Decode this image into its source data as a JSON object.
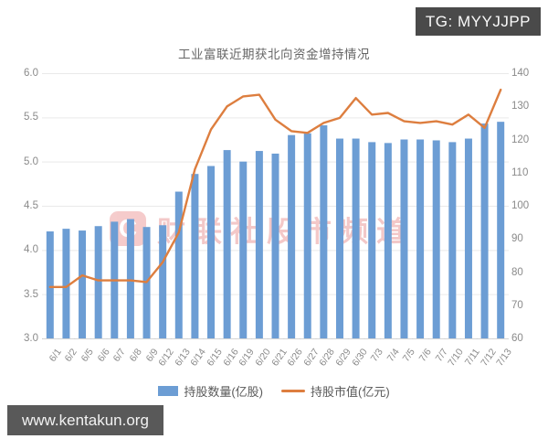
{
  "badges": {
    "tg": "TG: MYYJJPP",
    "site": "www.kentakun.org"
  },
  "watermark": {
    "logo_glyph": "C",
    "text": "财联社股市频道",
    "color": "#efb6b6"
  },
  "colors": {
    "bar": "#6C9DD4",
    "line": "#DD7E3F",
    "grid": "#e9e9e9",
    "axis_line": "#d5d5d5",
    "tick_text": "#8a8a8a",
    "badge_bg": "#4a4a4a"
  },
  "chart_data": {
    "type": "bar",
    "title": "工业富联近期获北向资金增持情况",
    "categories": [
      "6/1",
      "6/2",
      "6/5",
      "6/6",
      "6/7",
      "6/8",
      "6/9",
      "6/12",
      "6/13",
      "6/14",
      "6/15",
      "6/16",
      "6/19",
      "6/20",
      "6/21",
      "6/26",
      "6/27",
      "6/28",
      "6/29",
      "6/30",
      "7/3",
      "7/4",
      "7/5",
      "7/6",
      "7/7",
      "7/10",
      "7/11",
      "7/12",
      "7/13"
    ],
    "series": [
      {
        "name": "持股数量(亿股)",
        "type": "bar",
        "axis": "left",
        "color": "#6C9DD4",
        "values": [
          4.21,
          4.24,
          4.22,
          4.27,
          4.32,
          4.35,
          4.26,
          4.28,
          4.66,
          4.86,
          4.95,
          5.13,
          5.0,
          5.12,
          5.09,
          5.3,
          5.32,
          5.41,
          5.26,
          5.26,
          5.22,
          5.21,
          5.25,
          5.25,
          5.24,
          5.22,
          5.26,
          5.43,
          5.45
        ]
      },
      {
        "name": "持股市值(亿元)",
        "type": "line",
        "axis": "right",
        "color": "#DD7E3F",
        "values": [
          75.5,
          75.5,
          79,
          77.5,
          77.5,
          77.5,
          77,
          83,
          92,
          111,
          123,
          130,
          133,
          133.5,
          126,
          122.5,
          122,
          125,
          126.5,
          132.5,
          127.5,
          128,
          125.5,
          125,
          125.5,
          124.5,
          127.5,
          123.5,
          135
        ]
      }
    ],
    "left_axis": {
      "min": 3.0,
      "max": 6.0,
      "ticks": [
        "6.0",
        "5.5",
        "5.0",
        "4.5",
        "4.0",
        "3.5",
        "3.0"
      ]
    },
    "right_axis": {
      "min": 60,
      "max": 140,
      "ticks": [
        "140",
        "130",
        "120",
        "110",
        "100",
        "90",
        "80",
        "70",
        "60"
      ]
    },
    "grid": "horizontal",
    "legend_position": "bottom"
  }
}
